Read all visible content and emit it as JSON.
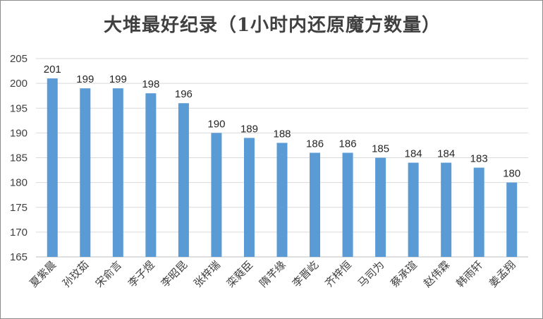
{
  "chart_data": {
    "type": "bar",
    "title": "大堆最好纪录（1小时内还原魔方数量）",
    "categories": [
      "夏紫晨",
      "孙玟茹",
      "宋俞言",
      "李子煜",
      "李昭昆",
      "张梓瑞",
      "栾蕤臣",
      "隋芊缘",
      "李晋屹",
      "齐梓恒",
      "马司为",
      "蔡承瑄",
      "赵伟霖",
      "韩雨轩",
      "姜孟翔"
    ],
    "values": [
      201,
      199,
      199,
      198,
      196,
      190,
      189,
      188,
      186,
      186,
      185,
      184,
      184,
      183,
      180
    ],
    "ylim": [
      165,
      205
    ],
    "yticks": [
      165,
      170,
      175,
      180,
      185,
      190,
      195,
      200,
      205
    ],
    "grid": true,
    "legend": "none",
    "bar_color": "#5b9bd5"
  }
}
